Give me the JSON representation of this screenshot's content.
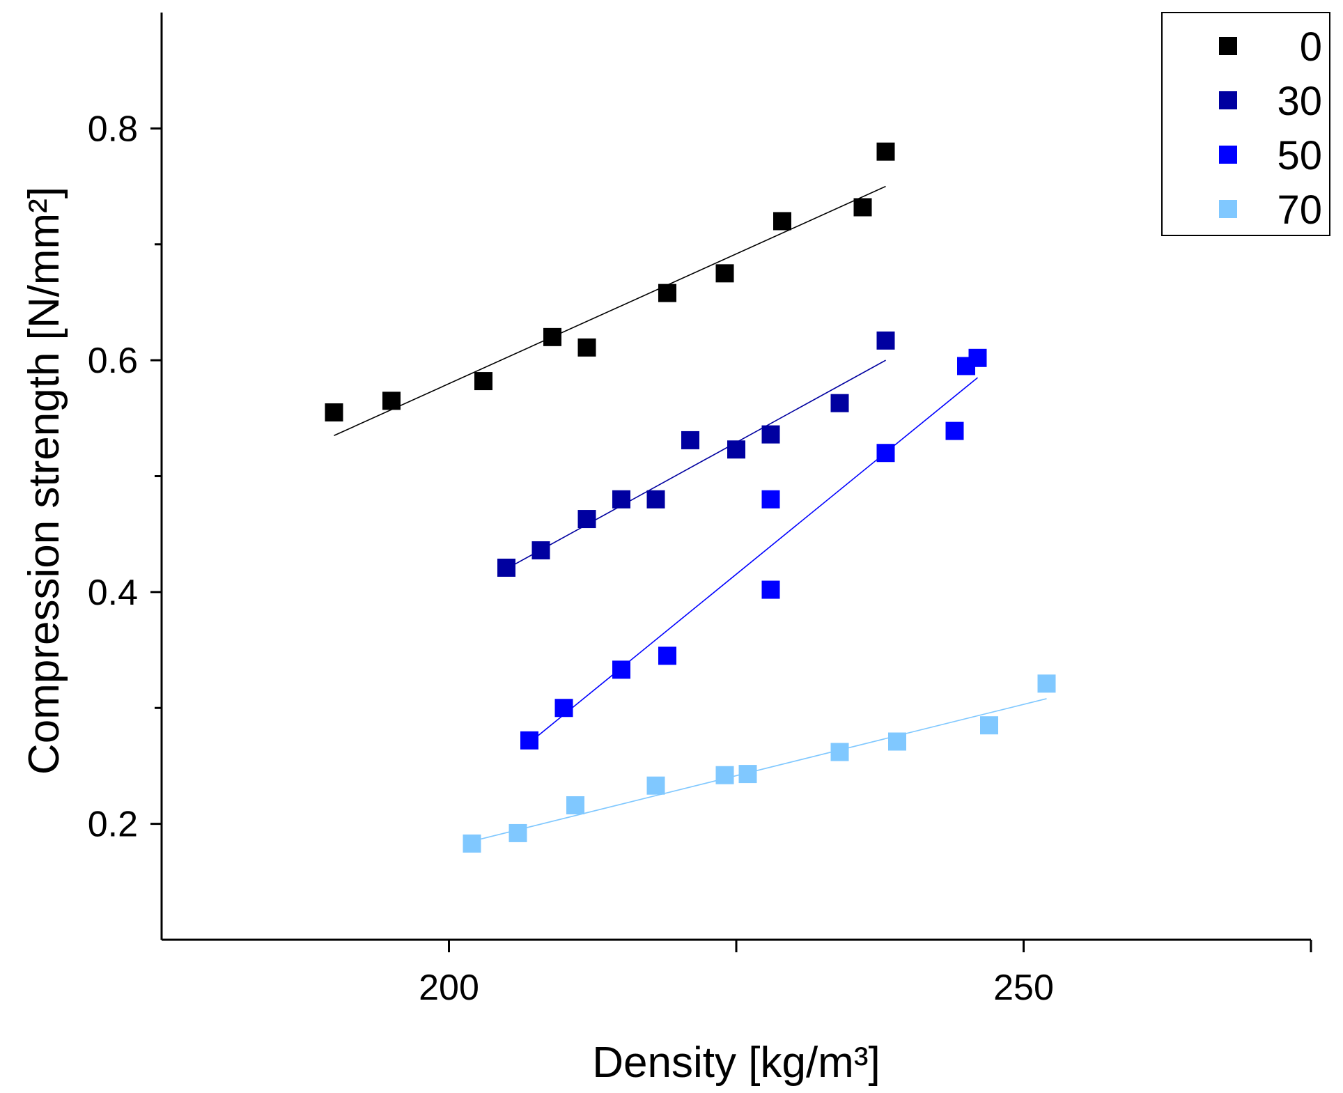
{
  "chart_data": {
    "type": "scatter",
    "xlabel": "Density [kg/m³]",
    "ylabel": "Compression strength [N/mm²]",
    "xlim": [
      175,
      275
    ],
    "ylim": [
      0.1,
      0.9
    ],
    "x_ticks": [
      200,
      225,
      250,
      275
    ],
    "x_tick_labels": [
      "200",
      "",
      "250",
      ""
    ],
    "y_ticks": [
      0.2,
      0.3,
      0.4,
      0.5,
      0.6,
      0.7,
      0.8
    ],
    "y_tick_labels": [
      "0.2",
      "",
      "0.4",
      "",
      "0.6",
      "",
      "0.8"
    ],
    "legend_position": "top-right",
    "series": [
      {
        "name": "0",
        "color": "#000000",
        "x": [
          190,
          195,
          203,
          209,
          212,
          219,
          224,
          229,
          236,
          238
        ],
        "y": [
          0.555,
          0.565,
          0.582,
          0.62,
          0.611,
          0.658,
          0.675,
          0.72,
          0.732,
          0.78
        ],
        "fit": {
          "x": [
            190,
            238
          ],
          "y": [
            0.535,
            0.75
          ]
        }
      },
      {
        "name": "30",
        "color": "#0000A0",
        "x": [
          205,
          208,
          212,
          215,
          218,
          221,
          225,
          228,
          234,
          238
        ],
        "y": [
          0.421,
          0.436,
          0.463,
          0.48,
          0.48,
          0.531,
          0.523,
          0.536,
          0.563,
          0.617
        ],
        "fit": {
          "x": [
            205,
            238
          ],
          "y": [
            0.42,
            0.6
          ]
        }
      },
      {
        "name": "50",
        "color": "#0000FF",
        "x": [
          207,
          210,
          215,
          219,
          228,
          228,
          238,
          244,
          245,
          246
        ],
        "y": [
          0.272,
          0.3,
          0.333,
          0.345,
          0.48,
          0.402,
          0.52,
          0.539,
          0.595,
          0.602
        ],
        "fit": {
          "x": [
            207,
            246
          ],
          "y": [
            0.27,
            0.585
          ]
        }
      },
      {
        "name": "70",
        "color": "#80C8FF",
        "x": [
          202,
          206,
          211,
          218,
          224,
          226,
          234,
          239,
          247,
          252
        ],
        "y": [
          0.183,
          0.192,
          0.216,
          0.233,
          0.242,
          0.243,
          0.262,
          0.271,
          0.285,
          0.321
        ],
        "fit": {
          "x": [
            202,
            252
          ],
          "y": [
            0.185,
            0.308
          ]
        }
      }
    ]
  }
}
